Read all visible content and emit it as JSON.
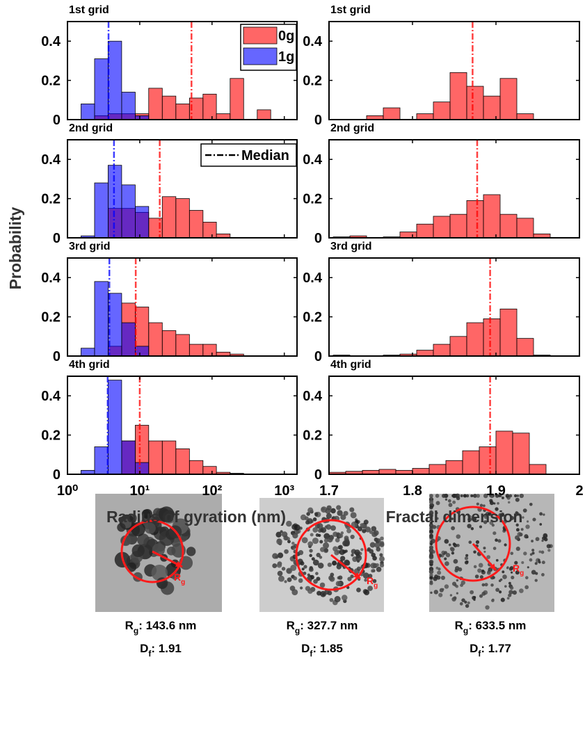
{
  "chart_data": [
    {
      "type": "histogram",
      "title": "1st grid",
      "ylabel": "Probability",
      "xscale": "log",
      "xlim": [
        1,
        1500
      ],
      "ylim": [
        0,
        0.5
      ],
      "yticks": [
        0,
        0.2,
        0.4
      ],
      "legend": "upper right",
      "series": [
        {
          "name": "0g",
          "color": "#ff0000",
          "median": 52,
          "bins": [
            2.37,
            3.65,
            5.62,
            8.66,
            13.3,
            20.5,
            31.6,
            48.7,
            75,
            115,
            178,
            274,
            422,
            649
          ],
          "values": [
            0.02,
            0.03,
            0.03,
            0.03,
            0.16,
            0.12,
            0.08,
            0.11,
            0.13,
            0.03,
            0.21,
            0,
            0.05
          ]
        },
        {
          "name": "1g",
          "color": "#0000ff",
          "median": 3.7,
          "bins": [
            1.54,
            2.37,
            3.65,
            5.62,
            8.66,
            13.3
          ],
          "values": [
            0.08,
            0.31,
            0.4,
            0.14,
            0.02
          ]
        }
      ]
    },
    {
      "type": "histogram",
      "title": "1st grid",
      "xlim": [
        1.7,
        2
      ],
      "ylim": [
        0,
        0.5
      ],
      "yticks": [
        0,
        0.2,
        0.4
      ],
      "series": [
        {
          "color": "#ff0000",
          "median": 1.872,
          "bins": [
            1.745,
            1.765,
            1.785,
            1.805,
            1.825,
            1.845,
            1.865,
            1.885,
            1.905,
            1.925,
            1.945
          ],
          "values": [
            0.02,
            0.06,
            0,
            0.03,
            0.09,
            0.24,
            0.17,
            0.12,
            0.21,
            0.03
          ]
        }
      ]
    },
    {
      "type": "histogram",
      "title": "2nd grid",
      "xscale": "log",
      "xlim": [
        1,
        1500
      ],
      "ylim": [
        0,
        0.5
      ],
      "yticks": [
        0,
        0.2,
        0.4
      ],
      "median_label": "Median",
      "series": [
        {
          "color": "#ff0000",
          "median": 18.9,
          "bins": [
            3.65,
            5.62,
            8.66,
            13.3,
            20.5,
            31.6,
            48.7,
            75,
            115,
            178
          ],
          "values": [
            0.15,
            0.15,
            0.13,
            0.1,
            0.21,
            0.2,
            0.14,
            0.08,
            0.02
          ]
        },
        {
          "color": "#0000ff",
          "median": 4.4,
          "bins": [
            1.54,
            2.37,
            3.65,
            5.62,
            8.66,
            13.3
          ],
          "values": [
            0.01,
            0.28,
            0.37,
            0.27,
            0.16
          ]
        }
      ]
    },
    {
      "type": "histogram",
      "title": "2nd grid",
      "xlim": [
        1.7,
        2
      ],
      "ylim": [
        0,
        0.5
      ],
      "yticks": [
        0,
        0.2,
        0.4
      ],
      "series": [
        {
          "color": "#ff0000",
          "median": 1.8775,
          "bins": [
            1.705,
            1.725,
            1.745,
            1.765,
            1.785,
            1.805,
            1.825,
            1.845,
            1.865,
            1.885,
            1.905,
            1.925,
            1.945,
            1.965
          ],
          "values": [
            0.005,
            0.01,
            0,
            0.005,
            0.03,
            0.07,
            0.11,
            0.12,
            0.19,
            0.22,
            0.12,
            0.1,
            0.02
          ]
        }
      ]
    },
    {
      "type": "histogram",
      "title": "3rd grid",
      "xscale": "log",
      "xlim": [
        1,
        1500
      ],
      "ylim": [
        0,
        0.5
      ],
      "yticks": [
        0,
        0.2,
        0.4
      ],
      "series": [
        {
          "color": "#ff0000",
          "median": 8.8,
          "bins": [
            3.65,
            5.62,
            8.66,
            13.3,
            20.5,
            31.6,
            48.7,
            75,
            115,
            178,
            274
          ],
          "values": [
            0.05,
            0.27,
            0.25,
            0.17,
            0.13,
            0.11,
            0.06,
            0.06,
            0.02,
            0.01
          ]
        },
        {
          "color": "#0000ff",
          "median": 3.8,
          "bins": [
            1.54,
            2.37,
            3.65,
            5.62,
            8.66,
            13.3
          ],
          "values": [
            0.04,
            0.38,
            0.32,
            0.17,
            0.05
          ]
        }
      ]
    },
    {
      "type": "histogram",
      "title": "3rd grid",
      "xlim": [
        1.7,
        2
      ],
      "ylim": [
        0,
        0.5
      ],
      "yticks": [
        0,
        0.2,
        0.4
      ],
      "series": [
        {
          "color": "#ff0000",
          "median": 1.893,
          "bins": [
            1.705,
            1.725,
            1.745,
            1.765,
            1.785,
            1.805,
            1.825,
            1.845,
            1.865,
            1.885,
            1.905,
            1.925,
            1.945,
            1.965
          ],
          "values": [
            0.005,
            0,
            0,
            0.005,
            0.01,
            0.03,
            0.06,
            0.1,
            0.17,
            0.19,
            0.24,
            0.09,
            0.005
          ]
        }
      ]
    },
    {
      "type": "histogram",
      "title": "4th grid",
      "xlabel": "Radius of gyration (nm)",
      "xscale": "log",
      "xlim": [
        1,
        1500
      ],
      "ylim": [
        0,
        0.5
      ],
      "yticks": [
        0,
        0.2,
        0.4
      ],
      "xticks": [
        {
          "value": 1,
          "label": "10⁰"
        },
        {
          "value": 10,
          "label": "10¹"
        },
        {
          "value": 100,
          "label": "10²"
        },
        {
          "value": 1000,
          "label": "10³"
        }
      ],
      "series": [
        {
          "color": "#ff0000",
          "median": 10,
          "bins": [
            5.62,
            8.66,
            13.3,
            20.5,
            31.6,
            48.7,
            75,
            115,
            178,
            274
          ],
          "values": [
            0.17,
            0.25,
            0.17,
            0.17,
            0.13,
            0.07,
            0.04,
            0.01,
            0.005
          ]
        },
        {
          "color": "#0000ff",
          "median": 3.6,
          "bins": [
            1.54,
            2.37,
            3.65,
            5.62,
            8.66,
            13.3
          ],
          "values": [
            0.02,
            0.14,
            0.48,
            0.17,
            0.06
          ]
        }
      ]
    },
    {
      "type": "histogram",
      "title": "4th grid",
      "xlabel": "Fractal dimension",
      "xlim": [
        1.7,
        2
      ],
      "ylim": [
        0,
        0.5
      ],
      "yticks": [
        0,
        0.2,
        0.4
      ],
      "xticks": [
        1.7,
        1.8,
        1.9,
        2
      ],
      "series": [
        {
          "color": "#ff0000",
          "median": 1.893,
          "bins": [
            1.7,
            1.72,
            1.74,
            1.76,
            1.78,
            1.8,
            1.82,
            1.84,
            1.86,
            1.88,
            1.9,
            1.92,
            1.94,
            1.96
          ],
          "values": [
            0.01,
            0.015,
            0.02,
            0.025,
            0.02,
            0.03,
            0.05,
            0.07,
            0.12,
            0.14,
            0.22,
            0.21,
            0.05
          ]
        }
      ]
    }
  ],
  "images": [
    {
      "inset": {
        "main": "R",
        "sub": "g"
      },
      "caption": [
        {
          "main": "R",
          "sub": "g",
          "rest": ": 143.6 nm"
        },
        {
          "main": "D",
          "sub": "f",
          "rest": ": 1.91"
        }
      ]
    },
    {
      "inset": {
        "main": "R",
        "sub": "g"
      },
      "caption": [
        {
          "main": "R",
          "sub": "g",
          "rest": ": 327.7 nm"
        },
        {
          "main": "D",
          "sub": "f",
          "rest": ": 1.85"
        }
      ]
    },
    {
      "inset": {
        "main": "R",
        "sub": "g"
      },
      "caption": [
        {
          "main": "R",
          "sub": "g",
          "rest": ": 633.5 nm"
        },
        {
          "main": "D",
          "sub": "f",
          "rest": ": 1.77"
        }
      ]
    }
  ]
}
